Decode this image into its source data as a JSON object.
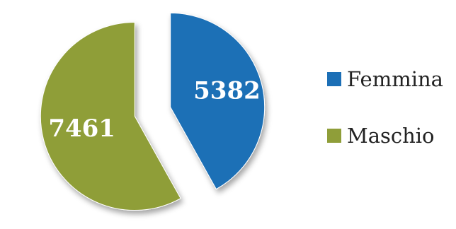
{
  "chart_data": {
    "type": "pie",
    "title": "",
    "slices": [
      {
        "label": "Femmina",
        "value": 5382,
        "color": "#1c6fb6"
      },
      {
        "label": "Maschio",
        "value": 7461,
        "color": "#8f9e39"
      }
    ],
    "exploded": true,
    "legend_position": "right",
    "data_labels": true
  }
}
